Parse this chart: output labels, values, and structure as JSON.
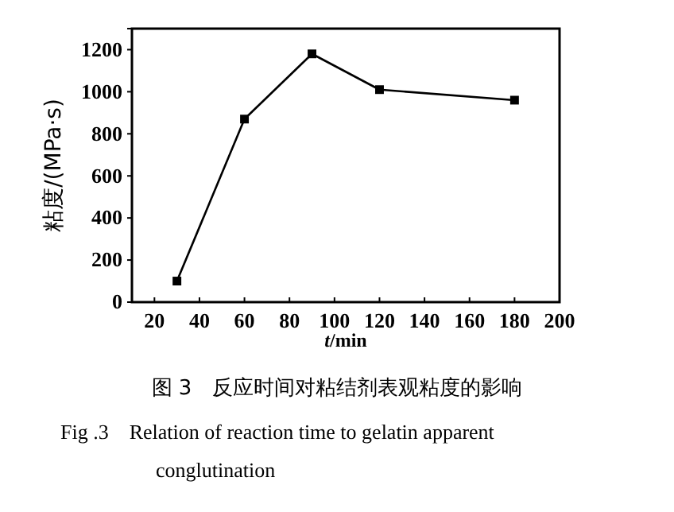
{
  "chart_data": {
    "type": "line",
    "xlabel": "t/min",
    "ylabel": "粘度/(MPa·s)",
    "x": [
      30,
      60,
      90,
      120,
      180
    ],
    "series": [
      {
        "color": "#000000",
        "values": [
          100,
          870,
          1180,
          1010,
          960
        ]
      }
    ],
    "xlim": [
      10,
      200
    ],
    "xticks": [
      20,
      40,
      60,
      80,
      100,
      120,
      140,
      160,
      180,
      200
    ],
    "ylim": [
      0,
      1300
    ],
    "yticks": [
      0,
      200,
      400,
      600,
      800,
      1000,
      1200
    ],
    "marker": "square",
    "line_style": "solid",
    "grid": false,
    "annotations": [
      "图 3　反应时间对粘结剂表观粘度的影响",
      "Fig .3　Relation of reaction time to gelatin apparent conglutination"
    ]
  }
}
